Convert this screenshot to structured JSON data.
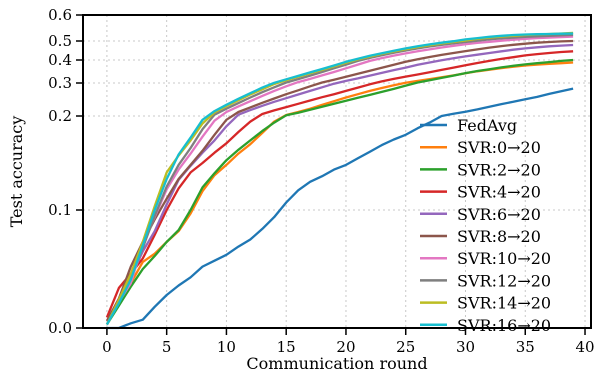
{
  "chart_data": {
    "type": "line",
    "title": "",
    "xlabel": "Communication round",
    "ylabel": "Test accuracy",
    "xlim": [
      -2,
      40.5
    ],
    "ylim": [
      0.0,
      0.6
    ],
    "y_scale": "custom-compressed (nonlinear)",
    "x_ticks": [
      0,
      5,
      10,
      15,
      20,
      25,
      30,
      35,
      40
    ],
    "x_tick_labels": [
      "0",
      "5",
      "10",
      "15",
      "20",
      "25",
      "30",
      "35",
      "40"
    ],
    "y_ticks": [
      0.0,
      0.1,
      0.2,
      0.3,
      0.4,
      0.5,
      0.6
    ],
    "y_tick_labels": [
      "0.0",
      "0.1",
      "0.2",
      "0.3",
      "0.4",
      "0.5",
      "0.6"
    ],
    "grid": true,
    "legend_position": "lower-right",
    "x": [
      0,
      1,
      2,
      3,
      4,
      5,
      6,
      7,
      8,
      9,
      10,
      11,
      12,
      13,
      14,
      15,
      16,
      17,
      18,
      19,
      20,
      21,
      22,
      23,
      24,
      25,
      26,
      27,
      28,
      29,
      30,
      31,
      32,
      33,
      34,
      35,
      36,
      37,
      38,
      39
    ],
    "series": [
      {
        "name": "FedAvg",
        "color": "#1f77b4",
        "values": [
          0.0,
          0.0,
          0.004,
          0.007,
          0.018,
          0.028,
          0.036,
          0.043,
          0.052,
          0.057,
          0.062,
          0.069,
          0.075,
          0.084,
          0.094,
          0.108,
          0.121,
          0.13,
          0.136,
          0.143,
          0.148,
          0.155,
          0.162,
          0.169,
          0.175,
          0.18,
          0.187,
          0.193,
          0.2,
          0.207,
          0.213,
          0.22,
          0.228,
          0.236,
          0.243,
          0.251,
          0.258,
          0.267,
          0.275,
          0.283
        ]
      },
      {
        "name": "SVR:0→20",
        "color": "#ff7f0e",
        "values": [
          0.003,
          0.022,
          0.038,
          0.056,
          0.063,
          0.073,
          0.082,
          0.097,
          0.12,
          0.137,
          0.148,
          0.16,
          0.17,
          0.182,
          0.194,
          0.203,
          0.212,
          0.222,
          0.234,
          0.245,
          0.256,
          0.266,
          0.276,
          0.285,
          0.293,
          0.301,
          0.309,
          0.317,
          0.325,
          0.333,
          0.342,
          0.351,
          0.358,
          0.365,
          0.371,
          0.376,
          0.38,
          0.383,
          0.386,
          0.389
        ]
      },
      {
        "name": "SVR:2→20",
        "color": "#2ca02c",
        "values": [
          0.003,
          0.019,
          0.035,
          0.05,
          0.061,
          0.073,
          0.083,
          0.1,
          0.124,
          0.139,
          0.153,
          0.164,
          0.174,
          0.184,
          0.193,
          0.202,
          0.21,
          0.219,
          0.228,
          0.237,
          0.246,
          0.255,
          0.264,
          0.273,
          0.282,
          0.292,
          0.302,
          0.312,
          0.322,
          0.332,
          0.343,
          0.352,
          0.36,
          0.368,
          0.375,
          0.381,
          0.386,
          0.391,
          0.396,
          0.4
        ]
      },
      {
        "name": "SVR:4→20",
        "color": "#d62728",
        "values": [
          0.009,
          0.034,
          0.046,
          0.059,
          0.079,
          0.1,
          0.123,
          0.14,
          0.15,
          0.161,
          0.171,
          0.183,
          0.194,
          0.206,
          0.217,
          0.227,
          0.237,
          0.247,
          0.257,
          0.266,
          0.276,
          0.286,
          0.296,
          0.307,
          0.318,
          0.328,
          0.337,
          0.347,
          0.357,
          0.367,
          0.377,
          0.387,
          0.396,
          0.406,
          0.415,
          0.424,
          0.431,
          0.437,
          0.442,
          0.446
        ]
      },
      {
        "name": "SVR:6→20",
        "color": "#9467bd",
        "values": [
          0.006,
          0.021,
          0.043,
          0.065,
          0.082,
          0.106,
          0.132,
          0.147,
          0.161,
          0.174,
          0.189,
          0.204,
          0.218,
          0.231,
          0.243,
          0.254,
          0.265,
          0.276,
          0.287,
          0.298,
          0.309,
          0.32,
          0.332,
          0.344,
          0.356,
          0.367,
          0.379,
          0.389,
          0.399,
          0.409,
          0.419,
          0.428,
          0.437,
          0.446,
          0.454,
          0.461,
          0.467,
          0.472,
          0.476,
          0.479
        ]
      },
      {
        "name": "SVR:8→20",
        "color": "#8c564b",
        "values": [
          0.006,
          0.025,
          0.052,
          0.073,
          0.092,
          0.112,
          0.133,
          0.148,
          0.163,
          0.18,
          0.196,
          0.212,
          0.226,
          0.24,
          0.253,
          0.266,
          0.278,
          0.29,
          0.302,
          0.314,
          0.327,
          0.34,
          0.353,
          0.366,
          0.379,
          0.392,
          0.404,
          0.416,
          0.427,
          0.437,
          0.447,
          0.456,
          0.465,
          0.473,
          0.48,
          0.486,
          0.491,
          0.495,
          0.498,
          0.5
        ]
      },
      {
        "name": "SVR:10→20",
        "color": "#e377c2",
        "values": [
          0.003,
          0.022,
          0.038,
          0.071,
          0.094,
          0.122,
          0.143,
          0.16,
          0.178,
          0.195,
          0.212,
          0.229,
          0.245,
          0.261,
          0.276,
          0.29,
          0.304,
          0.318,
          0.333,
          0.348,
          0.364,
          0.38,
          0.396,
          0.41,
          0.423,
          0.435,
          0.446,
          0.456,
          0.466,
          0.475,
          0.483,
          0.49,
          0.496,
          0.501,
          0.505,
          0.508,
          0.511,
          0.513,
          0.515,
          0.517
        ]
      },
      {
        "name": "SVR:12→20",
        "color": "#7f7f7f",
        "values": [
          0.003,
          0.022,
          0.043,
          0.068,
          0.095,
          0.125,
          0.148,
          0.166,
          0.186,
          0.204,
          0.222,
          0.239,
          0.256,
          0.272,
          0.287,
          0.302,
          0.317,
          0.332,
          0.348,
          0.364,
          0.38,
          0.396,
          0.411,
          0.425,
          0.438,
          0.45,
          0.461,
          0.471,
          0.48,
          0.488,
          0.495,
          0.501,
          0.506,
          0.51,
          0.513,
          0.516,
          0.518,
          0.52,
          0.522,
          0.524
        ]
      },
      {
        "name": "SVR:14→20",
        "color": "#bcbd22",
        "values": [
          0.003,
          0.024,
          0.046,
          0.073,
          0.104,
          0.14,
          0.158,
          0.174,
          0.192,
          0.211,
          0.23,
          0.248,
          0.265,
          0.281,
          0.297,
          0.312,
          0.327,
          0.342,
          0.357,
          0.372,
          0.388,
          0.403,
          0.418,
          0.432,
          0.445,
          0.457,
          0.468,
          0.478,
          0.487,
          0.495,
          0.502,
          0.508,
          0.513,
          0.517,
          0.52,
          0.523,
          0.525,
          0.527,
          0.529,
          0.531
        ]
      },
      {
        "name": "SVR:16→20",
        "color": "#17becf",
        "values": [
          0.003,
          0.021,
          0.041,
          0.07,
          0.1,
          0.133,
          0.159,
          0.177,
          0.196,
          0.215,
          0.234,
          0.252,
          0.269,
          0.286,
          0.301,
          0.316,
          0.331,
          0.346,
          0.361,
          0.376,
          0.392,
          0.407,
          0.422,
          0.436,
          0.449,
          0.461,
          0.472,
          0.482,
          0.491,
          0.499,
          0.506,
          0.511,
          0.516,
          0.52,
          0.523,
          0.525,
          0.526,
          0.527,
          0.528,
          0.529
        ]
      }
    ]
  }
}
